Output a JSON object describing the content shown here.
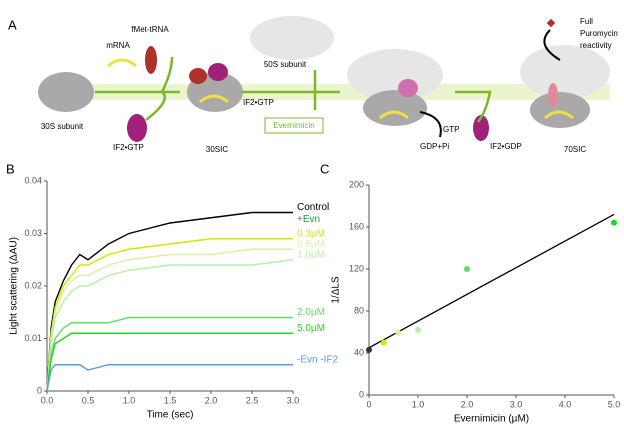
{
  "panels": [
    "A",
    "B",
    "C"
  ],
  "diagram": {
    "mrna": "mRNA",
    "fmet_trna": "fMet-tRNA",
    "subunit_30s": "30S subunit",
    "if2_gtp_free": "IF2•GTP",
    "ic_30s": "30SIC",
    "if2_gtp_step": "IF2•GTP",
    "subunit_50s": "50S subunit",
    "inhibitor": "Evernimicin",
    "gtp": "GTP",
    "gdp_pi": "GDP+Pi",
    "if2_gdp": "IF2•GDP",
    "ic_70s": "70SIC",
    "reactivity": [
      "Full",
      "Puromycin",
      "reactivity"
    ]
  },
  "chart_data": [
    {
      "type": "line",
      "xlabel": "Time (sec)",
      "ylabel": "Light scattering (ΔAU)",
      "annotation": "+Evn",
      "annotation_color": "#1a9a3a",
      "x": [
        0,
        0.05,
        0.1,
        0.2,
        0.3,
        0.4,
        0.5,
        0.75,
        1.0,
        1.5,
        2.0,
        2.5,
        3.0
      ],
      "xlim": [
        0,
        3
      ],
      "xticks": [
        {
          "value": 0,
          "label": "0.0"
        },
        {
          "value": 0.5,
          "label": "0.5"
        },
        {
          "value": 1,
          "label": "1.0"
        },
        {
          "value": 1.5,
          "label": "1.5"
        },
        {
          "value": 2,
          "label": "2.0"
        },
        {
          "value": 2.5,
          "label": "2.5"
        },
        {
          "value": 3,
          "label": "3.0"
        }
      ],
      "ylim": [
        0,
        0.04
      ],
      "yticks": [
        0,
        0.01,
        0.02,
        0.03,
        0.04
      ],
      "series": [
        {
          "name": "Control",
          "color": "#000000",
          "values": [
            0,
            0.012,
            0.017,
            0.021,
            0.024,
            0.026,
            0.025,
            0.028,
            0.03,
            0.032,
            0.033,
            0.034,
            0.034
          ]
        },
        {
          "name": "0.3µM",
          "color": "#d2e600",
          "values": [
            0,
            0.011,
            0.016,
            0.02,
            0.022,
            0.024,
            0.024,
            0.026,
            0.027,
            0.028,
            0.029,
            0.029,
            0.029
          ]
        },
        {
          "name": "0.6µM",
          "color": "#dcefa6",
          "values": [
            0,
            0.01,
            0.015,
            0.019,
            0.021,
            0.022,
            0.022,
            0.024,
            0.025,
            0.026,
            0.026,
            0.027,
            0.027
          ]
        },
        {
          "name": "1.0µM",
          "color": "#b5efa8",
          "values": [
            0,
            0.009,
            0.014,
            0.017,
            0.019,
            0.02,
            0.02,
            0.022,
            0.023,
            0.024,
            0.024,
            0.024,
            0.025
          ]
        },
        {
          "name": "2.0µM",
          "color": "#62dc62",
          "values": [
            0,
            0.007,
            0.01,
            0.012,
            0.013,
            0.013,
            0.013,
            0.013,
            0.014,
            0.014,
            0.014,
            0.014,
            0.014
          ]
        },
        {
          "name": "5.0µM",
          "color": "#1fd81f",
          "values": [
            0,
            0.006,
            0.009,
            0.01,
            0.011,
            0.011,
            0.011,
            0.011,
            0.011,
            0.011,
            0.011,
            0.011,
            0.011
          ]
        },
        {
          "name": "-Evn -IF2",
          "color": "#5a9be8",
          "values": [
            0,
            0.004,
            0.005,
            0.005,
            0.005,
            0.005,
            0.004,
            0.005,
            0.005,
            0.005,
            0.005,
            0.005,
            0.005
          ]
        }
      ]
    },
    {
      "type": "scatter",
      "xlabel": "Evernimicin (µM)",
      "ylabel": "1/ΔLS",
      "x": [
        0,
        0.3,
        0.6,
        1.0,
        2.0,
        5.0
      ],
      "values": [
        43,
        50,
        59,
        62,
        120,
        164
      ],
      "colors": [
        "#333333",
        "#d2e600",
        "#dcefa6",
        "#b5efa8",
        "#62dc62",
        "#1fd81f"
      ],
      "trend_line": {
        "x": [
          0,
          5
        ],
        "y": [
          45,
          172
        ],
        "color": "#000000"
      },
      "xlim": [
        0,
        5
      ],
      "xticks": [
        0,
        {
          "value": 1,
          "label": "1.0"
        },
        {
          "value": 2,
          "label": "2.0"
        },
        {
          "value": 3,
          "label": "3.0"
        },
        {
          "value": 4,
          "label": "4.0"
        },
        {
          "value": 5,
          "label": "5.0"
        }
      ],
      "ylim": [
        0,
        200
      ],
      "yticks": [
        0,
        40,
        80,
        120,
        160,
        200
      ]
    }
  ]
}
